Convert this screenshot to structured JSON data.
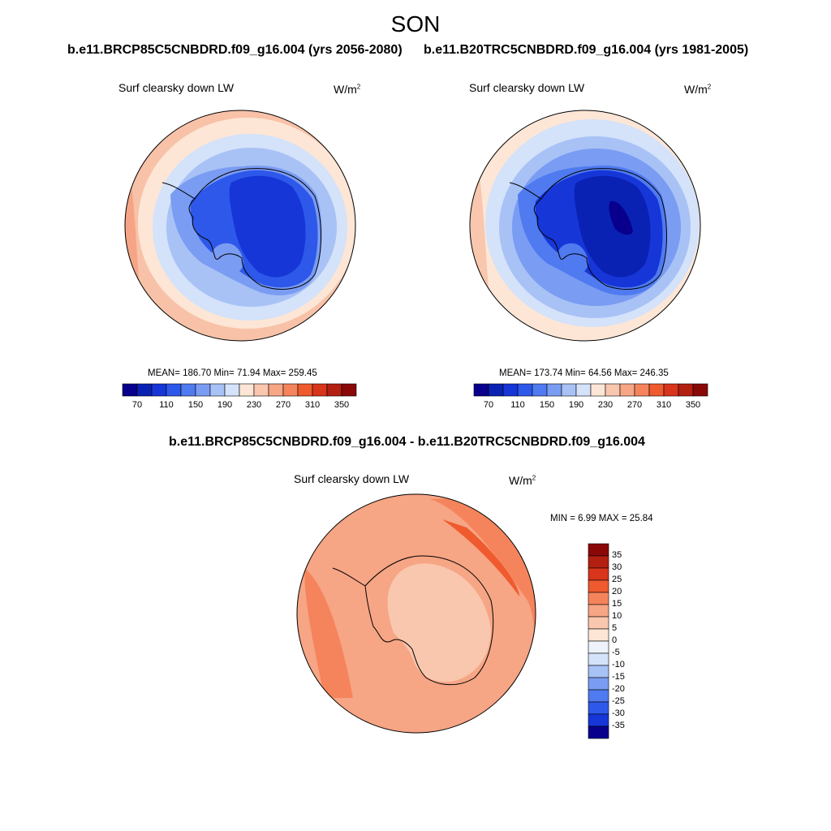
{
  "page": {
    "title": "SON",
    "diff_title": "b.e11.BRCP85C5CNBDRD.f09_g16.004 - b.e11.B20TRC5CNBDRD.f09_g16.004"
  },
  "panels": [
    {
      "id": "future",
      "title": "b.e11.BRCP85C5CNBDRD.f09_g16.004 (yrs 2056-2080)",
      "variable": "Surf clearsky down LW",
      "units_base": "W/m",
      "units_exp": "2",
      "stats": {
        "mean": "186.70",
        "min": "71.94",
        "max": "259.45"
      },
      "stats_text": "MEAN= 186.70  Min=  71.94  Max= 259.45"
    },
    {
      "id": "historical",
      "title": "b.e11.B20TRC5CNBDRD.f09_g16.004 (yrs 1981-2005)",
      "variable": "Surf clearsky down LW",
      "units_base": "W/m",
      "units_exp": "2",
      "stats": {
        "mean": "173.74",
        "min": "64.56",
        "max": "246.35"
      },
      "stats_text": "MEAN= 173.74  Min=  64.56  Max= 246.35"
    },
    {
      "id": "difference",
      "variable": "Surf clearsky down LW",
      "units_base": "W/m",
      "units_exp": "2",
      "stats": {
        "min": "6.99",
        "max": "25.84"
      },
      "stats_text": "MIN =   6.99 MAX =  25.84"
    }
  ],
  "chart_data": [
    {
      "type": "heatmap",
      "projection": "south-polar-stereographic",
      "title": "b.e11.BRCP85C5CNBDRD.f09_g16.004 (yrs 2056-2080)",
      "subtitle": "Surf clearsky down LW",
      "units": "W/m^2",
      "mean": 186.7,
      "min": 71.94,
      "max": 259.45,
      "colorbar": {
        "orientation": "horizontal",
        "levels": [
          70,
          90,
          110,
          130,
          150,
          170,
          190,
          210,
          230,
          250,
          270,
          290,
          310,
          330,
          350
        ],
        "tick_labels": [
          "70",
          "110",
          "150",
          "190",
          "230",
          "270",
          "310",
          "350"
        ],
        "colors": [
          "#08008c",
          "#0a22b4",
          "#1636d8",
          "#2e58ea",
          "#4f7af0",
          "#7a9cf2",
          "#a8c2f6",
          "#d4e2fa",
          "#fde6d6",
          "#f9c6ae",
          "#f6a585",
          "#f5845c",
          "#ef5a2e",
          "#d8351b",
          "#b31f10",
          "#8a0808"
        ]
      }
    },
    {
      "type": "heatmap",
      "projection": "south-polar-stereographic",
      "title": "b.e11.B20TRC5CNBDRD.f09_g16.004 (yrs 1981-2005)",
      "subtitle": "Surf clearsky down LW",
      "units": "W/m^2",
      "mean": 173.74,
      "min": 64.56,
      "max": 246.35,
      "colorbar": {
        "orientation": "horizontal",
        "levels": [
          70,
          90,
          110,
          130,
          150,
          170,
          190,
          210,
          230,
          250,
          270,
          290,
          310,
          330,
          350
        ],
        "tick_labels": [
          "70",
          "110",
          "150",
          "190",
          "230",
          "270",
          "310",
          "350"
        ],
        "colors": [
          "#08008c",
          "#0a22b4",
          "#1636d8",
          "#2e58ea",
          "#4f7af0",
          "#7a9cf2",
          "#a8c2f6",
          "#d4e2fa",
          "#fde6d6",
          "#f9c6ae",
          "#f6a585",
          "#f5845c",
          "#ef5a2e",
          "#d8351b",
          "#b31f10",
          "#8a0808"
        ]
      }
    },
    {
      "type": "heatmap",
      "projection": "south-polar-stereographic",
      "title": "b.e11.BRCP85C5CNBDRD.f09_g16.004 - b.e11.B20TRC5CNBDRD.f09_g16.004",
      "subtitle": "Surf clearsky down LW",
      "units": "W/m^2",
      "min": 6.99,
      "max": 25.84,
      "colorbar": {
        "orientation": "vertical",
        "tick_labels": [
          "35",
          "30",
          "25",
          "20",
          "15",
          "10",
          "5",
          "0",
          "-5",
          "-10",
          "-15",
          "-20",
          "-25",
          "-30",
          "-35"
        ],
        "colors": [
          "#8a0808",
          "#b31f10",
          "#d8351b",
          "#ef5a2e",
          "#f5845c",
          "#f6a585",
          "#f9c6ae",
          "#fde6d6",
          "#eef2fb",
          "#d4e2fa",
          "#a8c2f6",
          "#7a9cf2",
          "#4f7af0",
          "#2e58ea",
          "#1636d8",
          "#08008c"
        ]
      }
    }
  ]
}
